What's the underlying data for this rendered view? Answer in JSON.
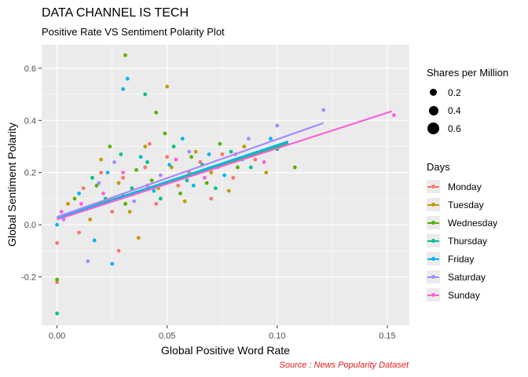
{
  "chart_data": {
    "type": "scatter",
    "title": "DATA CHANNEL IS TECH",
    "subtitle": "Positive Rate VS Sentiment Polarity Plot",
    "xlabel": "Global Positive Word Rate",
    "ylabel": "Global Sentiment Polarity",
    "caption": "Source : News Popularity Dataset",
    "xlim": [
      -0.007,
      0.16
    ],
    "ylim": [
      -0.385,
      0.69
    ],
    "x_ticks": [
      0.0,
      0.05,
      0.1,
      0.15
    ],
    "x_tick_labels": [
      "0.00",
      "0.05",
      "0.10",
      "0.15"
    ],
    "y_ticks": [
      -0.2,
      0.0,
      0.2,
      0.4,
      0.6
    ],
    "y_tick_labels": [
      "-0.2",
      "0.0",
      "0.2",
      "0.4",
      "0.6"
    ],
    "grid": true,
    "legend_placement": "right",
    "size_legend": {
      "title": "Shares per Million",
      "values": [
        0.2,
        0.4,
        0.6
      ],
      "labels": [
        "0.2",
        "0.4",
        "0.6"
      ]
    },
    "color_legend": {
      "title": "Days"
    },
    "series": [
      {
        "name": "Monday",
        "color": "#F8766D",
        "fit": [
          [
            0.0,
            0.03
          ],
          [
            0.105,
            0.31
          ]
        ],
        "points": [
          [
            0.0,
            -0.07
          ],
          [
            0.0,
            -0.22
          ],
          [
            0.01,
            -0.03
          ],
          [
            0.012,
            0.14
          ],
          [
            0.02,
            0.2
          ],
          [
            0.025,
            0.05
          ],
          [
            0.03,
            0.18
          ],
          [
            0.035,
            0.12
          ],
          [
            0.04,
            0.22
          ],
          [
            0.045,
            0.08
          ],
          [
            0.05,
            0.26
          ],
          [
            0.055,
            0.15
          ],
          [
            0.06,
            0.2
          ],
          [
            0.065,
            0.24
          ],
          [
            0.07,
            0.1
          ],
          [
            0.075,
            0.27
          ],
          [
            0.08,
            0.18
          ],
          [
            0.09,
            0.25
          ],
          [
            0.028,
            -0.1
          ],
          [
            0.042,
            0.31
          ]
        ]
      },
      {
        "name": "Tuesday",
        "color": "#C49A00",
        "fit": [
          [
            0.0,
            0.03
          ],
          [
            0.105,
            0.31
          ]
        ],
        "points": [
          [
            0.005,
            0.08
          ],
          [
            0.015,
            0.02
          ],
          [
            0.02,
            0.25
          ],
          [
            0.028,
            0.16
          ],
          [
            0.033,
            0.05
          ],
          [
            0.04,
            0.3
          ],
          [
            0.046,
            0.14
          ],
          [
            0.052,
            0.22
          ],
          [
            0.058,
            0.09
          ],
          [
            0.063,
            0.28
          ],
          [
            0.07,
            0.2
          ],
          [
            0.078,
            0.13
          ],
          [
            0.085,
            0.3
          ],
          [
            0.095,
            0.2
          ],
          [
            0.037,
            -0.05
          ],
          [
            0.05,
            0.53
          ]
        ]
      },
      {
        "name": "Wednesday",
        "color": "#53B400",
        "fit": [
          [
            0.0,
            0.025
          ],
          [
            0.105,
            0.31
          ]
        ],
        "points": [
          [
            0.0,
            -0.21
          ],
          [
            0.008,
            0.1
          ],
          [
            0.018,
            0.15
          ],
          [
            0.024,
            0.3
          ],
          [
            0.031,
            0.08
          ],
          [
            0.036,
            0.21
          ],
          [
            0.043,
            0.17
          ],
          [
            0.049,
            0.35
          ],
          [
            0.056,
            0.12
          ],
          [
            0.061,
            0.26
          ],
          [
            0.068,
            0.16
          ],
          [
            0.074,
            0.31
          ],
          [
            0.082,
            0.22
          ],
          [
            0.09,
            0.27
          ],
          [
            0.108,
            0.22
          ],
          [
            0.031,
            0.65
          ],
          [
            0.045,
            0.43
          ]
        ]
      },
      {
        "name": "Thursday",
        "color": "#00C094",
        "fit": [
          [
            0.0,
            0.025
          ],
          [
            0.105,
            0.315
          ]
        ],
        "points": [
          [
            0.0,
            -0.34
          ],
          [
            0.006,
            0.04
          ],
          [
            0.016,
            0.18
          ],
          [
            0.022,
            0.1
          ],
          [
            0.029,
            0.27
          ],
          [
            0.034,
            0.14
          ],
          [
            0.041,
            0.24
          ],
          [
            0.047,
            0.1
          ],
          [
            0.053,
            0.3
          ],
          [
            0.059,
            0.17
          ],
          [
            0.066,
            0.23
          ],
          [
            0.072,
            0.14
          ],
          [
            0.079,
            0.28
          ],
          [
            0.088,
            0.22
          ],
          [
            0.1,
            0.29
          ],
          [
            0.04,
            0.5
          ]
        ]
      },
      {
        "name": "Friday",
        "color": "#00B6EB",
        "fit": [
          [
            0.0,
            0.025
          ],
          [
            0.105,
            0.32
          ]
        ],
        "points": [
          [
            0.0,
            0.0
          ],
          [
            0.01,
            0.12
          ],
          [
            0.017,
            -0.06
          ],
          [
            0.023,
            0.2
          ],
          [
            0.03,
            0.11
          ],
          [
            0.032,
            0.56
          ],
          [
            0.038,
            0.26
          ],
          [
            0.044,
            0.13
          ],
          [
            0.051,
            0.23
          ],
          [
            0.057,
            0.33
          ],
          [
            0.062,
            0.15
          ],
          [
            0.069,
            0.27
          ],
          [
            0.076,
            0.19
          ],
          [
            0.084,
            0.25
          ],
          [
            0.097,
            0.33
          ],
          [
            0.025,
            -0.15
          ],
          [
            0.03,
            0.52
          ]
        ]
      },
      {
        "name": "Saturday",
        "color": "#A58AFF",
        "fit": [
          [
            0.0,
            0.03
          ],
          [
            0.121,
            0.39
          ]
        ],
        "points": [
          [
            0.003,
            0.02
          ],
          [
            0.012,
            0.06
          ],
          [
            0.019,
            0.16
          ],
          [
            0.026,
            0.24
          ],
          [
            0.035,
            0.09
          ],
          [
            0.047,
            0.19
          ],
          [
            0.06,
            0.28
          ],
          [
            0.073,
            0.22
          ],
          [
            0.087,
            0.33
          ],
          [
            0.1,
            0.38
          ],
          [
            0.121,
            0.44
          ],
          [
            0.014,
            -0.14
          ]
        ]
      },
      {
        "name": "Sunday",
        "color": "#FB61D7",
        "fit": [
          [
            0.0,
            0.02
          ],
          [
            0.152,
            0.435
          ]
        ],
        "points": [
          [
            0.002,
            0.05
          ],
          [
            0.011,
            0.08
          ],
          [
            0.021,
            0.12
          ],
          [
            0.03,
            0.2
          ],
          [
            0.041,
            0.15
          ],
          [
            0.054,
            0.25
          ],
          [
            0.067,
            0.18
          ],
          [
            0.081,
            0.27
          ],
          [
            0.094,
            0.24
          ],
          [
            0.153,
            0.42
          ]
        ]
      }
    ]
  }
}
